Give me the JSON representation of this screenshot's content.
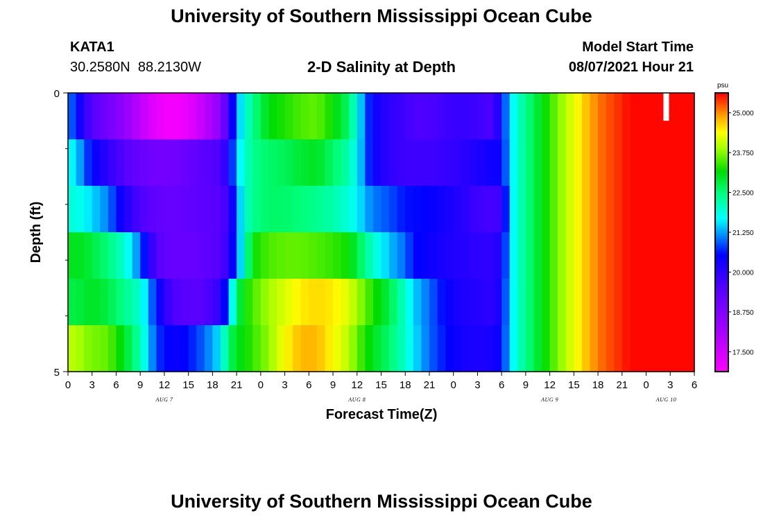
{
  "page": {
    "top_title": "University of Southern Mississippi Ocean Cube",
    "bottom_title": "University of Southern Mississippi Ocean Cube",
    "station_id": "KATA1",
    "station_coords": "30.2580N  88.2130W",
    "model_start_label": "Model Start Time",
    "model_start_value": "08/07/2021 Hour 21"
  },
  "chart_data": {
    "type": "heatmap",
    "title": "2-D Salinity at Depth",
    "xlabel": "Forecast Time(Z)",
    "ylabel": "Depth (ft)",
    "units": "psu",
    "x_start_hour": 0,
    "x_end_hour": 78,
    "y_range": [
      0,
      5
    ],
    "y_tick_labels": [
      "0",
      "5"
    ],
    "y_minor_ticks": [
      1,
      2,
      3,
      4
    ],
    "x_tick_labels": [
      "0",
      "3",
      "6",
      "9",
      "12",
      "15",
      "18",
      "21",
      "0",
      "3",
      "6",
      "9",
      "12",
      "15",
      "18",
      "21",
      "0",
      "3",
      "6",
      "9",
      "12",
      "15",
      "18",
      "21",
      "0",
      "3",
      "6"
    ],
    "x_tick_hours": [
      0,
      3,
      6,
      9,
      12,
      15,
      18,
      21,
      24,
      27,
      30,
      33,
      36,
      39,
      42,
      45,
      48,
      51,
      54,
      57,
      60,
      63,
      66,
      69,
      72,
      75,
      78
    ],
    "day_labels": [
      {
        "label": "AUG 7",
        "hour": 12
      },
      {
        "label": "AUG 8",
        "hour": 36
      },
      {
        "label": "AUG 9",
        "hour": 60
      },
      {
        "label": "AUG 10",
        "hour": 74.5
      }
    ],
    "color_range": [
      16.875,
      25.625
    ],
    "colorbar_labels": [
      "17.500",
      "18.750",
      "20.000",
      "21.250",
      "22.500",
      "23.750",
      "25.000"
    ],
    "colorbar_values": [
      17.5,
      18.75,
      20.0,
      21.25,
      22.5,
      23.75,
      25.0
    ],
    "row_anchors": {
      "hours": [
        0,
        1,
        2,
        3,
        5,
        7,
        9,
        11,
        13,
        15,
        17,
        19,
        20,
        21,
        22,
        23,
        25,
        27,
        29,
        31,
        33,
        35,
        36,
        37,
        38,
        40,
        42,
        43,
        45,
        47,
        49,
        51,
        53,
        54,
        55,
        56,
        57,
        60,
        64,
        66,
        70,
        74,
        76,
        78
      ],
      "rows": [
        [
          21.2,
          20.6,
          20.0,
          19.5,
          19.0,
          18.5,
          17.8,
          17.2,
          17.0,
          17.2,
          17.8,
          18.6,
          19.8,
          21.2,
          21.9,
          22.4,
          23.1,
          23.3,
          23.5,
          23.6,
          23.2,
          22.6,
          21.8,
          21.0,
          20.4,
          20.0,
          19.8,
          19.6,
          19.6,
          19.8,
          19.9,
          19.8,
          19.6,
          20.5,
          21.5,
          22.0,
          22.4,
          23.4,
          24.6,
          25.1,
          25.6,
          25.6,
          25.6,
          25.6
        ],
        [
          21.8,
          21.5,
          21.0,
          20.5,
          20.0,
          19.5,
          19.2,
          19.0,
          19.0,
          19.2,
          19.4,
          19.6,
          20.2,
          21.4,
          22.0,
          22.4,
          22.6,
          22.7,
          22.9,
          23.0,
          22.6,
          22.2,
          21.7,
          21.0,
          20.4,
          20.0,
          19.8,
          19.8,
          19.8,
          19.9,
          20.0,
          20.2,
          20.4,
          20.4,
          21.5,
          22.0,
          22.4,
          23.4,
          24.6,
          25.1,
          25.6,
          25.6,
          25.6,
          25.6
        ],
        [
          21.9,
          21.9,
          21.7,
          21.5,
          21.1,
          20.2,
          19.6,
          19.3,
          19.2,
          19.3,
          19.4,
          19.5,
          19.8,
          21.0,
          22.0,
          22.4,
          22.6,
          22.6,
          22.5,
          22.4,
          22.2,
          21.9,
          21.7,
          21.3,
          21.1,
          20.9,
          20.6,
          20.6,
          20.5,
          20.3,
          20.1,
          19.8,
          19.7,
          19.8,
          21.5,
          22.0,
          22.4,
          23.4,
          24.6,
          25.1,
          25.6,
          25.6,
          25.6,
          25.6
        ],
        [
          23.0,
          23.0,
          23.0,
          22.8,
          22.5,
          22.0,
          21.0,
          19.5,
          19.2,
          19.2,
          19.3,
          19.5,
          20.0,
          21.0,
          22.0,
          23.2,
          23.5,
          23.6,
          23.6,
          23.5,
          23.4,
          23.2,
          22.8,
          22.4,
          22.0,
          21.4,
          21.0,
          20.6,
          20.4,
          20.2,
          20.1,
          20.0,
          20.0,
          20.2,
          21.5,
          22.0,
          22.4,
          23.4,
          24.6,
          25.1,
          25.6,
          25.6,
          25.6,
          25.6
        ],
        [
          22.8,
          22.8,
          22.9,
          23.0,
          22.8,
          22.4,
          22.0,
          20.6,
          19.6,
          19.4,
          19.5,
          20.0,
          21.0,
          22.6,
          23.2,
          23.5,
          23.9,
          24.2,
          24.5,
          24.6,
          24.5,
          24.2,
          23.9,
          23.6,
          23.3,
          22.8,
          22.0,
          21.5,
          21.0,
          20.5,
          20.2,
          20.1,
          20.0,
          20.4,
          21.5,
          22.0,
          22.4,
          23.4,
          24.6,
          25.1,
          25.6,
          25.6,
          25.6,
          25.6
        ],
        [
          24.0,
          24.0,
          23.8,
          23.7,
          23.6,
          23.0,
          22.2,
          20.8,
          20.4,
          20.6,
          21.0,
          21.6,
          22.6,
          23.0,
          23.2,
          23.4,
          23.8,
          24.4,
          24.8,
          24.8,
          24.4,
          24.0,
          23.6,
          23.3,
          23.0,
          22.6,
          22.0,
          21.6,
          21.0,
          20.6,
          20.3,
          20.2,
          20.3,
          20.5,
          21.5,
          22.0,
          22.4,
          23.4,
          24.6,
          25.1,
          25.6,
          25.6,
          25.6,
          25.6
        ]
      ]
    },
    "marker": {
      "hour": 74.5,
      "depth_from": 0,
      "depth_to": 0.5,
      "color": "#ffffff"
    }
  }
}
